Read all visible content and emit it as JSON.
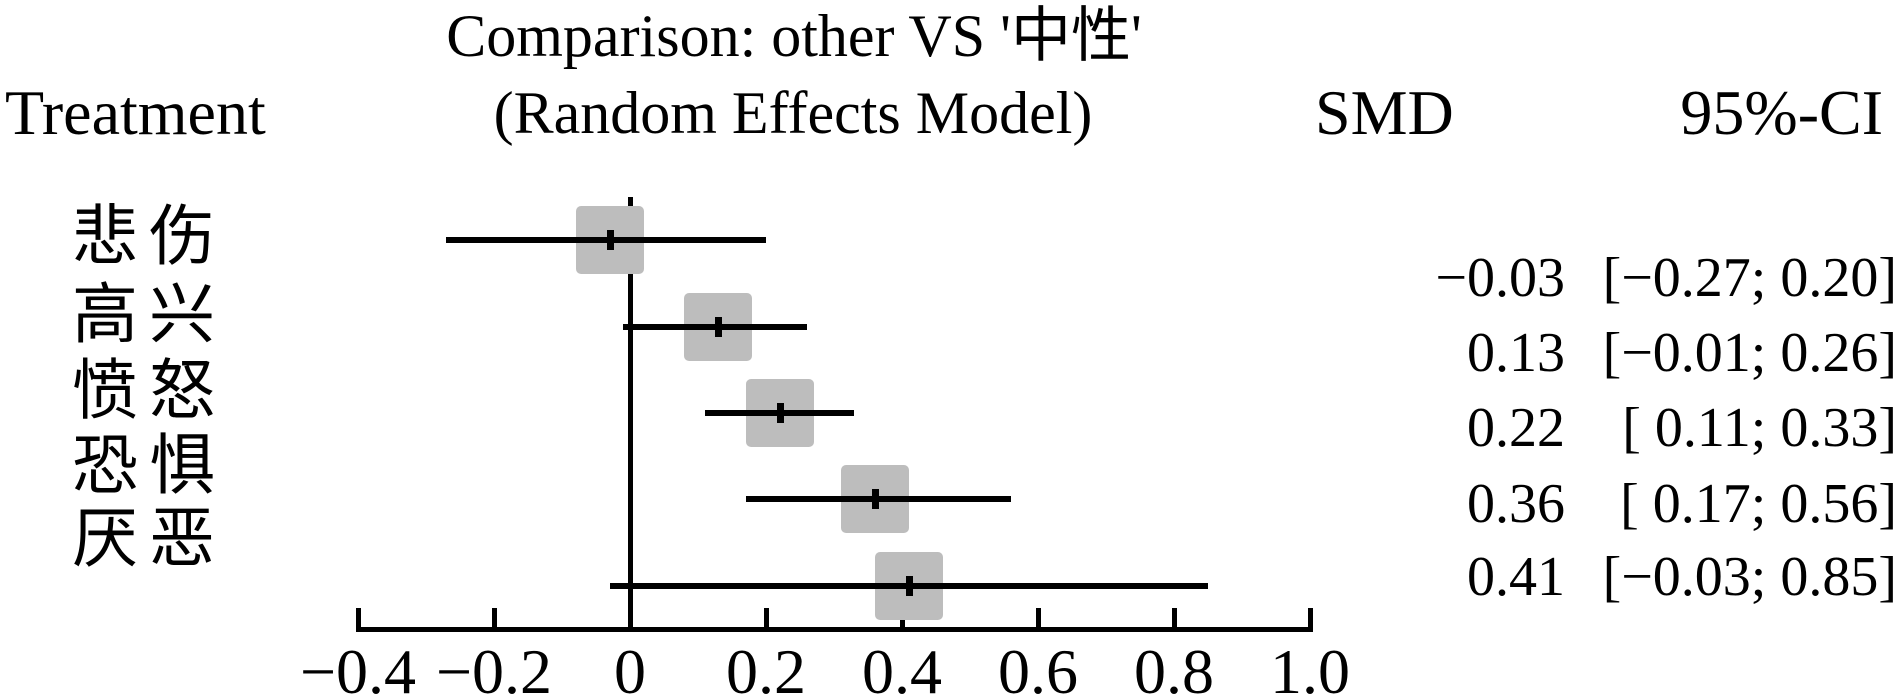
{
  "title": {
    "line1": "Comparison: other VS '中性'",
    "line2": "(Random Effects Model)"
  },
  "headers": {
    "treatment": "Treatment",
    "smd": "SMD",
    "ci": "95%-CI"
  },
  "rows": [
    {
      "label": "悲伤",
      "smd_text": "−0.03",
      "ci_text": "[−0.27; 0.20]"
    },
    {
      "label": "高兴",
      "smd_text": "0.13",
      "ci_text": "[−0.01; 0.26]"
    },
    {
      "label": "愤怒",
      "smd_text": "0.22",
      "ci_text": "[ 0.11; 0.33]"
    },
    {
      "label": "恐惧",
      "smd_text": "0.36",
      "ci_text": "[ 0.17; 0.56]"
    },
    {
      "label": "厌恶",
      "smd_text": "0.41",
      "ci_text": "[−0.03; 0.85]"
    }
  ],
  "chart_data": {
    "type": "scatter",
    "subtype": "forest-plot",
    "title": "Comparison: other VS '中性' (Random Effects Model)",
    "categories": [
      "悲伤",
      "高兴",
      "愤怒",
      "恐惧",
      "厌恶"
    ],
    "series": [
      {
        "name": "SMD",
        "values": [
          -0.03,
          0.13,
          0.22,
          0.36,
          0.41
        ]
      }
    ],
    "ci_lower": [
      -0.27,
      -0.01,
      0.11,
      0.17,
      -0.03
    ],
    "ci_upper": [
      0.2,
      0.26,
      0.33,
      0.56,
      0.85
    ],
    "reference_line_x": 0,
    "xlim": [
      -0.4,
      1.0
    ],
    "xticks": [
      -0.4,
      -0.2,
      0,
      0.2,
      0.4,
      0.6,
      0.8,
      1.0
    ],
    "xtick_labels": [
      "−0.4",
      "−0.2",
      "0",
      "0.2",
      "0.4",
      "0.6",
      "0.8",
      "1.0"
    ],
    "grid": false,
    "legend": false,
    "marker_color": "#bdbdbd",
    "line_color": "#000000"
  }
}
